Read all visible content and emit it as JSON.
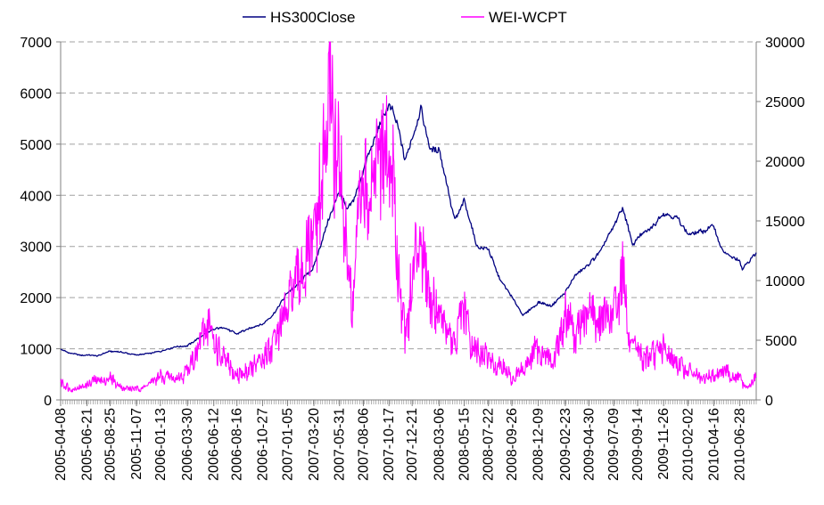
{
  "chart_data": {
    "type": "line",
    "title": "",
    "xlabel": "",
    "ylabel": "",
    "y2label": "",
    "x_start": "2005-04-08",
    "x_end": "2010-08-13",
    "x_tick_labels": [
      "2005-04-08",
      "2005-06-21",
      "2005-08-25",
      "2005-11-07",
      "2006-01-13",
      "2006-03-30",
      "2006-06-12",
      "2006-08-16",
      "2006-10-27",
      "2007-01-05",
      "2007-03-20",
      "2007-05-31",
      "2007-08-06",
      "2007-10-17",
      "2007-12-21",
      "2008-03-06",
      "2008-05-15",
      "2008-07-22",
      "2008-09-26",
      "2008-12-09",
      "2009-02-23",
      "2009-04-30",
      "2009-07-09",
      "2009-09-14",
      "2009-11-26",
      "2010-02-02",
      "2010-04-16",
      "2010-06-28"
    ],
    "ylim": [
      0,
      7000
    ],
    "yticks": [
      0,
      1000,
      2000,
      3000,
      4000,
      5000,
      6000,
      7000
    ],
    "y2lim": [
      0,
      30000
    ],
    "y2ticks": [
      0,
      5000,
      10000,
      15000,
      20000,
      25000,
      30000
    ],
    "grid": "horizontal dashed",
    "legend_position": "top",
    "series": [
      {
        "name": "HS300Close",
        "axis": "left",
        "color": "#000080",
        "points": [
          {
            "x": "2005-04-08",
            "y": 990
          },
          {
            "x": "2005-05-01",
            "y": 920
          },
          {
            "x": "2005-06-05",
            "y": 870
          },
          {
            "x": "2005-06-21",
            "y": 880
          },
          {
            "x": "2005-07-20",
            "y": 860
          },
          {
            "x": "2005-08-25",
            "y": 950
          },
          {
            "x": "2005-09-20",
            "y": 940
          },
          {
            "x": "2005-10-20",
            "y": 900
          },
          {
            "x": "2005-11-07",
            "y": 880
          },
          {
            "x": "2005-12-15",
            "y": 910
          },
          {
            "x": "2006-01-13",
            "y": 950
          },
          {
            "x": "2006-02-20",
            "y": 1030
          },
          {
            "x": "2006-03-30",
            "y": 1060
          },
          {
            "x": "2006-05-10",
            "y": 1250
          },
          {
            "x": "2006-06-12",
            "y": 1380
          },
          {
            "x": "2006-07-10",
            "y": 1420
          },
          {
            "x": "2006-08-16",
            "y": 1290
          },
          {
            "x": "2006-09-20",
            "y": 1400
          },
          {
            "x": "2006-10-27",
            "y": 1480
          },
          {
            "x": "2006-11-30",
            "y": 1700
          },
          {
            "x": "2007-01-05",
            "y": 2100
          },
          {
            "x": "2007-02-10",
            "y": 2300
          },
          {
            "x": "2007-03-20",
            "y": 2600
          },
          {
            "x": "2007-04-25",
            "y": 3400
          },
          {
            "x": "2007-05-31",
            "y": 4100
          },
          {
            "x": "2007-06-20",
            "y": 3700
          },
          {
            "x": "2007-07-10",
            "y": 3900
          },
          {
            "x": "2007-08-06",
            "y": 4500
          },
          {
            "x": "2007-09-10",
            "y": 5200
          },
          {
            "x": "2007-10-17",
            "y": 5800
          },
          {
            "x": "2007-11-10",
            "y": 5400
          },
          {
            "x": "2007-11-30",
            "y": 4700
          },
          {
            "x": "2007-12-21",
            "y": 5100
          },
          {
            "x": "2008-01-14",
            "y": 5700
          },
          {
            "x": "2008-02-10",
            "y": 4900
          },
          {
            "x": "2008-03-06",
            "y": 4900
          },
          {
            "x": "2008-04-18",
            "y": 3500
          },
          {
            "x": "2008-05-15",
            "y": 3900
          },
          {
            "x": "2008-06-20",
            "y": 3000
          },
          {
            "x": "2008-07-22",
            "y": 2950
          },
          {
            "x": "2008-08-20",
            "y": 2400
          },
          {
            "x": "2008-09-26",
            "y": 2000
          },
          {
            "x": "2008-10-28",
            "y": 1650
          },
          {
            "x": "2008-12-09",
            "y": 1900
          },
          {
            "x": "2009-01-15",
            "y": 1850
          },
          {
            "x": "2009-02-23",
            "y": 2100
          },
          {
            "x": "2009-03-20",
            "y": 2400
          },
          {
            "x": "2009-04-30",
            "y": 2650
          },
          {
            "x": "2009-06-01",
            "y": 2900
          },
          {
            "x": "2009-07-09",
            "y": 3400
          },
          {
            "x": "2009-08-04",
            "y": 3750
          },
          {
            "x": "2009-09-01",
            "y": 3000
          },
          {
            "x": "2009-09-14",
            "y": 3200
          },
          {
            "x": "2009-10-20",
            "y": 3350
          },
          {
            "x": "2009-11-26",
            "y": 3650
          },
          {
            "x": "2010-01-05",
            "y": 3550
          },
          {
            "x": "2010-02-02",
            "y": 3250
          },
          {
            "x": "2010-03-15",
            "y": 3300
          },
          {
            "x": "2010-04-16",
            "y": 3400
          },
          {
            "x": "2010-05-10",
            "y": 2900
          },
          {
            "x": "2010-06-28",
            "y": 2700
          },
          {
            "x": "2010-07-05",
            "y": 2560
          },
          {
            "x": "2010-08-13",
            "y": 2880
          }
        ]
      },
      {
        "name": "WEI-WCPT",
        "axis": "right",
        "color": "#ff00ff",
        "points": [
          {
            "x": "2005-04-08",
            "y": 1500
          },
          {
            "x": "2005-05-10",
            "y": 800
          },
          {
            "x": "2005-06-21",
            "y": 1200
          },
          {
            "x": "2005-07-15",
            "y": 1600
          },
          {
            "x": "2005-08-25",
            "y": 1800
          },
          {
            "x": "2005-10-01",
            "y": 1000
          },
          {
            "x": "2005-11-07",
            "y": 900
          },
          {
            "x": "2005-12-15",
            "y": 1300
          },
          {
            "x": "2006-01-13",
            "y": 2000
          },
          {
            "x": "2006-03-01",
            "y": 1700
          },
          {
            "x": "2006-03-30",
            "y": 2400
          },
          {
            "x": "2006-05-01",
            "y": 4500
          },
          {
            "x": "2006-05-20",
            "y": 7000
          },
          {
            "x": "2006-06-12",
            "y": 4500
          },
          {
            "x": "2006-07-10",
            "y": 3500
          },
          {
            "x": "2006-08-16",
            "y": 2000
          },
          {
            "x": "2006-09-20",
            "y": 2500
          },
          {
            "x": "2006-10-27",
            "y": 3500
          },
          {
            "x": "2006-11-30",
            "y": 5000
          },
          {
            "x": "2007-01-05",
            "y": 7500
          },
          {
            "x": "2007-02-10",
            "y": 10500
          },
          {
            "x": "2007-03-20",
            "y": 13000
          },
          {
            "x": "2007-04-10",
            "y": 17000
          },
          {
            "x": "2007-04-25",
            "y": 22000
          },
          {
            "x": "2007-05-10",
            "y": 25500
          },
          {
            "x": "2007-05-31",
            "y": 18000
          },
          {
            "x": "2007-06-20",
            "y": 14000
          },
          {
            "x": "2007-07-05",
            "y": 6500
          },
          {
            "x": "2007-07-20",
            "y": 13000
          },
          {
            "x": "2007-08-06",
            "y": 17000
          },
          {
            "x": "2007-09-10",
            "y": 19000
          },
          {
            "x": "2007-10-17",
            "y": 21000
          },
          {
            "x": "2007-11-10",
            "y": 12500
          },
          {
            "x": "2007-11-30",
            "y": 5500
          },
          {
            "x": "2007-12-21",
            "y": 9500
          },
          {
            "x": "2008-01-14",
            "y": 14000
          },
          {
            "x": "2008-02-10",
            "y": 9000
          },
          {
            "x": "2008-03-06",
            "y": 7000
          },
          {
            "x": "2008-04-18",
            "y": 4500
          },
          {
            "x": "2008-05-15",
            "y": 8000
          },
          {
            "x": "2008-06-01",
            "y": 5000
          },
          {
            "x": "2008-07-22",
            "y": 3500
          },
          {
            "x": "2008-08-20",
            "y": 3000
          },
          {
            "x": "2008-09-26",
            "y": 1800
          },
          {
            "x": "2008-10-28",
            "y": 2500
          },
          {
            "x": "2008-12-09",
            "y": 4500
          },
          {
            "x": "2009-01-15",
            "y": 3000
          },
          {
            "x": "2009-02-23",
            "y": 7000
          },
          {
            "x": "2009-03-20",
            "y": 5500
          },
          {
            "x": "2009-04-30",
            "y": 7500
          },
          {
            "x": "2009-06-01",
            "y": 6500
          },
          {
            "x": "2009-07-09",
            "y": 7000
          },
          {
            "x": "2009-08-04",
            "y": 11000
          },
          {
            "x": "2009-08-20",
            "y": 4500
          },
          {
            "x": "2009-09-14",
            "y": 4000
          },
          {
            "x": "2009-10-20",
            "y": 3500
          },
          {
            "x": "2009-11-26",
            "y": 4500
          },
          {
            "x": "2010-01-05",
            "y": 3000
          },
          {
            "x": "2010-02-02",
            "y": 2500
          },
          {
            "x": "2010-03-15",
            "y": 1800
          },
          {
            "x": "2010-04-16",
            "y": 2200
          },
          {
            "x": "2010-05-10",
            "y": 2500
          },
          {
            "x": "2010-06-28",
            "y": 1800
          },
          {
            "x": "2010-07-20",
            "y": 900
          },
          {
            "x": "2010-08-13",
            "y": 2000
          }
        ]
      }
    ]
  }
}
